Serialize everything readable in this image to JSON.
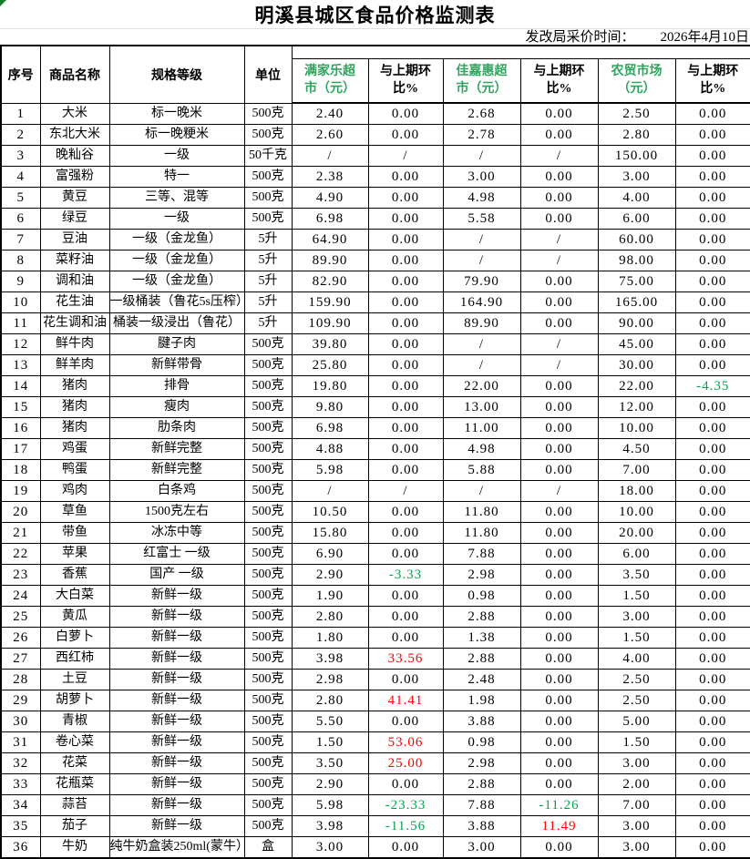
{
  "header": {
    "title": "明溪县城区食品价格监测表",
    "date_label": "发改局采价时间：",
    "date_value": "2026年4月10日"
  },
  "colors": {
    "market_header_green": "#2FA45E",
    "positive_pct_red": "#FF0000",
    "negative_pct_green": "#00A550",
    "border_black": "#000000",
    "corner_triangle_green": "#147F2C",
    "title_divider_gray": "#DEDEDE"
  },
  "icons": {
    "corner_triangle": "excel-error-triangle"
  },
  "table": {
    "left_headers": [
      "序号",
      "商品名称",
      "规格等级",
      "单位"
    ],
    "market_headers": [
      "满家乐超\n市（元）",
      "与上期环\n比%",
      "佳嘉惠超\n市（元）",
      "与上期环\n比%",
      "农贸市场\n（元）",
      "与上期环\n比%"
    ],
    "rows": [
      [
        "1",
        "大米",
        "标一晚米",
        "500克",
        "2.40",
        "0.00",
        "2.68",
        "0.00",
        "2.50",
        "0.00"
      ],
      [
        "2",
        "东北大米",
        "标一晚粳米",
        "500克",
        "2.60",
        "0.00",
        "2.78",
        "0.00",
        "2.80",
        "0.00"
      ],
      [
        "3",
        "晚籼谷",
        "一级",
        "50千克",
        "/",
        "/",
        "/",
        "/",
        "150.00",
        "0.00"
      ],
      [
        "4",
        "富强粉",
        "特一",
        "500克",
        "2.38",
        "0.00",
        "3.00",
        "0.00",
        "3.00",
        "0.00"
      ],
      [
        "5",
        "黄豆",
        "三等、混等",
        "500克",
        "4.90",
        "0.00",
        "4.98",
        "0.00",
        "4.00",
        "0.00"
      ],
      [
        "6",
        "绿豆",
        "一级",
        "500克",
        "6.98",
        "0.00",
        "5.58",
        "0.00",
        "6.00",
        "0.00"
      ],
      [
        "7",
        "豆油",
        "一级（金龙鱼）",
        "5升",
        "64.90",
        "0.00",
        "/",
        "/",
        "60.00",
        "0.00"
      ],
      [
        "8",
        "菜籽油",
        "一级（金龙鱼）",
        "5升",
        "89.90",
        "0.00",
        "/",
        "/",
        "98.00",
        "0.00"
      ],
      [
        "9",
        "调和油",
        "一级（金龙鱼）",
        "5升",
        "82.90",
        "0.00",
        "79.90",
        "0.00",
        "75.00",
        "0.00"
      ],
      [
        "10",
        "花生油",
        "一级桶装（鲁花5s压榨）",
        "5升",
        "159.90",
        "0.00",
        "164.90",
        "0.00",
        "165.00",
        "0.00"
      ],
      [
        "11",
        "花生调和油",
        "桶装一级浸出（鲁花）",
        "5升",
        "109.90",
        "0.00",
        "89.90",
        "0.00",
        "90.00",
        "0.00"
      ],
      [
        "12",
        "鲜牛肉",
        "腱子肉",
        "500克",
        "39.80",
        "0.00",
        "/",
        "/",
        "45.00",
        "0.00"
      ],
      [
        "13",
        "鲜羊肉",
        "新鲜带骨",
        "500克",
        "25.80",
        "0.00",
        "/",
        "/",
        "30.00",
        "0.00"
      ],
      [
        "14",
        "猪肉",
        "排骨",
        "500克",
        "19.80",
        "0.00",
        "22.00",
        "0.00",
        "22.00",
        "-4.35"
      ],
      [
        "15",
        "猪肉",
        "瘦肉",
        "500克",
        "9.80",
        "0.00",
        "13.00",
        "0.00",
        "12.00",
        "0.00"
      ],
      [
        "16",
        "猪肉",
        "肋条肉",
        "500克",
        "6.98",
        "0.00",
        "11.00",
        "0.00",
        "10.00",
        "0.00"
      ],
      [
        "17",
        "鸡蛋",
        "新鲜完整",
        "500克",
        "4.88",
        "0.00",
        "4.98",
        "0.00",
        "4.50",
        "0.00"
      ],
      [
        "18",
        "鸭蛋",
        "新鲜完整",
        "500克",
        "5.98",
        "0.00",
        "5.88",
        "0.00",
        "7.00",
        "0.00"
      ],
      [
        "19",
        "鸡肉",
        "白条鸡",
        "500克",
        "/",
        "/",
        "/",
        "/",
        "18.00",
        "0.00"
      ],
      [
        "20",
        "草鱼",
        "1500克左右",
        "500克",
        "10.50",
        "0.00",
        "11.80",
        "0.00",
        "10.00",
        "0.00"
      ],
      [
        "21",
        "带鱼",
        "冰冻中等",
        "500克",
        "15.80",
        "0.00",
        "11.80",
        "0.00",
        "20.00",
        "0.00"
      ],
      [
        "22",
        "苹果",
        "红富士 一级",
        "500克",
        "6.90",
        "0.00",
        "7.88",
        "0.00",
        "6.00",
        "0.00"
      ],
      [
        "23",
        "香蕉",
        "国产 一级",
        "500克",
        "2.90",
        "-3.33",
        "2.98",
        "0.00",
        "3.50",
        "0.00"
      ],
      [
        "24",
        "大白菜",
        "新鲜一级",
        "500克",
        "1.90",
        "0.00",
        "0.98",
        "0.00",
        "1.50",
        "0.00"
      ],
      [
        "25",
        "黄瓜",
        "新鲜一级",
        "500克",
        "2.80",
        "0.00",
        "2.88",
        "0.00",
        "3.00",
        "0.00"
      ],
      [
        "26",
        "白萝卜",
        "新鲜一级",
        "500克",
        "1.80",
        "0.00",
        "1.38",
        "0.00",
        "1.50",
        "0.00"
      ],
      [
        "27",
        "西红柿",
        "新鲜一级",
        "500克",
        "3.98",
        "33.56",
        "2.88",
        "0.00",
        "4.00",
        "0.00"
      ],
      [
        "28",
        "土豆",
        "新鲜一级",
        "500克",
        "2.98",
        "0.00",
        "2.48",
        "0.00",
        "2.50",
        "0.00"
      ],
      [
        "29",
        "胡萝卜",
        "新鲜一级",
        "500克",
        "2.80",
        "41.41",
        "1.98",
        "0.00",
        "2.50",
        "0.00"
      ],
      [
        "30",
        "青椒",
        "新鲜一级",
        "500克",
        "5.50",
        "0.00",
        "3.88",
        "0.00",
        "5.00",
        "0.00"
      ],
      [
        "31",
        "卷心菜",
        "新鲜一级",
        "500克",
        "1.50",
        "53.06",
        "0.98",
        "0.00",
        "1.50",
        "0.00"
      ],
      [
        "32",
        "花菜",
        "新鲜一级",
        "500克",
        "3.50",
        "25.00",
        "2.98",
        "0.00",
        "3.00",
        "0.00"
      ],
      [
        "33",
        "花瓶菜",
        "新鲜一级",
        "500克",
        "2.90",
        "0.00",
        "2.88",
        "0.00",
        "2.00",
        "0.00"
      ],
      [
        "34",
        "蒜苔",
        "新鲜一级",
        "500克",
        "5.98",
        "-23.33",
        "7.88",
        "-11.26",
        "7.00",
        "0.00"
      ],
      [
        "35",
        "茄子",
        "新鲜一级",
        "500克",
        "3.98",
        "-11.56",
        "3.88",
        "11.49",
        "3.00",
        "0.00"
      ],
      [
        "36",
        "牛奶",
        "纯牛奶盒装250ml(蒙牛）",
        "盒",
        "3.00",
        "0.00",
        "3.00",
        "0.00",
        "3.00",
        "0.00"
      ]
    ]
  }
}
